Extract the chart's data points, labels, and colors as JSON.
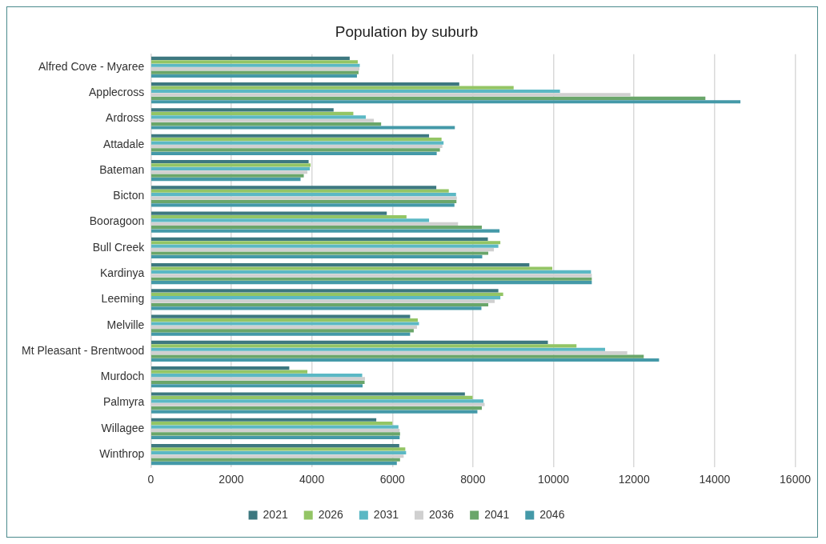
{
  "chart_data": {
    "type": "bar",
    "orientation": "horizontal",
    "title": "Population by suburb",
    "categories": [
      "Alfred Cove - Myaree",
      "Applecross",
      "Ardross",
      "Attadale",
      "Bateman",
      "Bicton",
      "Booragoon",
      "Bull Creek",
      "Kardinya",
      "Leeming",
      "Melville",
      "Mt Pleasant - Brentwood",
      "Murdoch",
      "Palmyra",
      "Willagee",
      "Winthrop"
    ],
    "series": [
      {
        "name": "2021",
        "color": "#3d7880",
        "values": [
          4940,
          7660,
          4540,
          6910,
          3920,
          7090,
          5860,
          8370,
          9400,
          8630,
          6440,
          9860,
          3440,
          7800,
          5600,
          6170
        ]
      },
      {
        "name": "2026",
        "color": "#93c565",
        "values": [
          5140,
          9010,
          5030,
          7220,
          3970,
          7400,
          6350,
          8680,
          9970,
          8750,
          6630,
          10570,
          3890,
          7990,
          6000,
          6320
        ]
      },
      {
        "name": "2031",
        "color": "#5bb8c4",
        "values": [
          5190,
          10160,
          5340,
          7270,
          3950,
          7580,
          6910,
          8630,
          10930,
          8680,
          6660,
          11280,
          5250,
          8260,
          6150,
          6340
        ]
      },
      {
        "name": "2036",
        "color": "#d0d0d0",
        "values": [
          5180,
          11910,
          5540,
          7240,
          3890,
          7600,
          7630,
          8520,
          10950,
          8540,
          6610,
          11830,
          5320,
          8290,
          6180,
          6280
        ]
      },
      {
        "name": "2041",
        "color": "#6aa66a",
        "values": [
          5160,
          13770,
          5720,
          7180,
          3800,
          7590,
          8220,
          8380,
          10950,
          8380,
          6530,
          12240,
          5310,
          8220,
          6190,
          6190
        ]
      },
      {
        "name": "2046",
        "color": "#4499a8",
        "values": [
          5120,
          14640,
          7550,
          7100,
          3720,
          7540,
          8660,
          8230,
          10950,
          8210,
          6440,
          12620,
          5260,
          8110,
          6180,
          6110
        ]
      }
    ],
    "xlim": [
      0,
      16000
    ],
    "xticks": [
      0,
      2000,
      4000,
      6000,
      8000,
      10000,
      12000,
      14000,
      16000
    ],
    "grid": "x",
    "legend": "bottom"
  }
}
